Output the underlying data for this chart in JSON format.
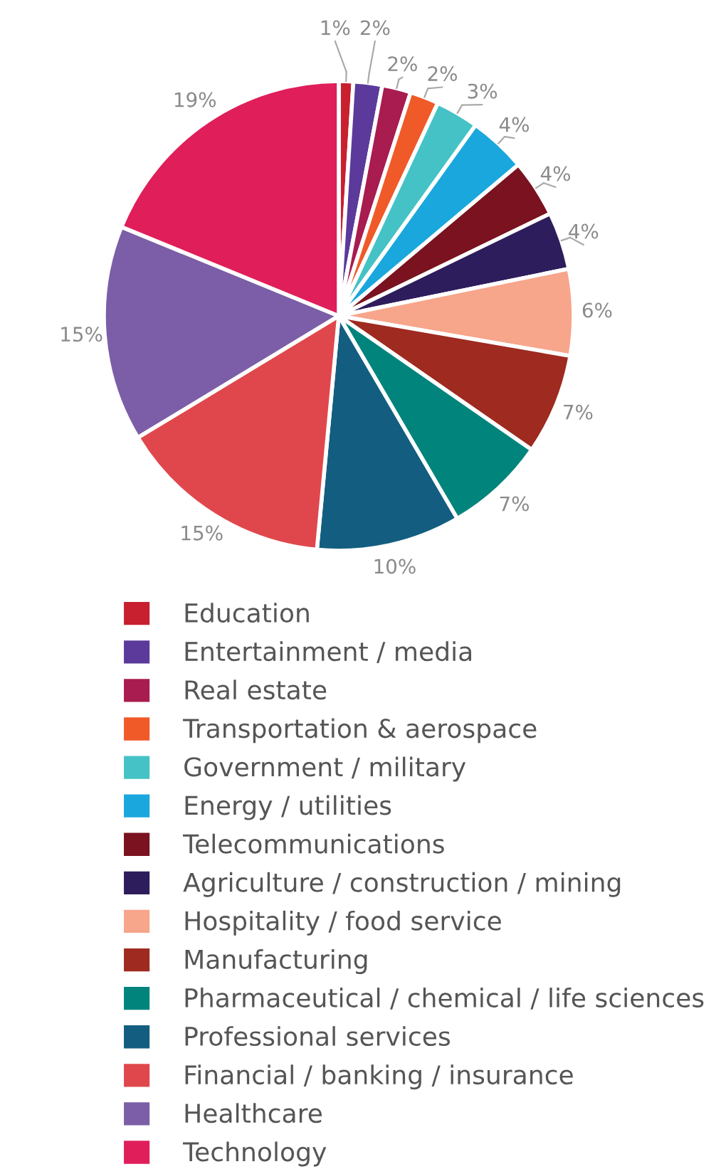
{
  "chart_data": {
    "type": "pie",
    "categories": [
      "Education",
      "Entertainment / media",
      "Real estate",
      "Transportation & aerospace",
      "Government / military",
      "Energy / utilities",
      "Telecommunications",
      "Agriculture / construction / mining",
      "Hospitality / food service",
      "Manufacturing",
      "Pharmaceutical / chemical / life sciences",
      "Professional services",
      "Financial / banking / insurance",
      "Healthcare",
      "Technology"
    ],
    "values": [
      1,
      2,
      2,
      2,
      3,
      4,
      4,
      4,
      6,
      7,
      7,
      10,
      15,
      15,
      19
    ],
    "colors": [
      "#c8202f",
      "#5b3a9b",
      "#a81c4f",
      "#f05a28",
      "#45c2c5",
      "#1aa7dd",
      "#7a1220",
      "#2e1d5c",
      "#f7a58b",
      "#9e2a20",
      "#00847c",
      "#135e80",
      "#e0474c",
      "#7b5ea7",
      "#e01e5a"
    ],
    "value_labels": [
      "1%",
      "2%",
      "2%",
      "2%",
      "3%",
      "4%",
      "4%",
      "4%",
      "6%",
      "7%",
      "7%",
      "10%",
      "15%",
      "15%",
      "19%"
    ],
    "legend": "bottom"
  }
}
